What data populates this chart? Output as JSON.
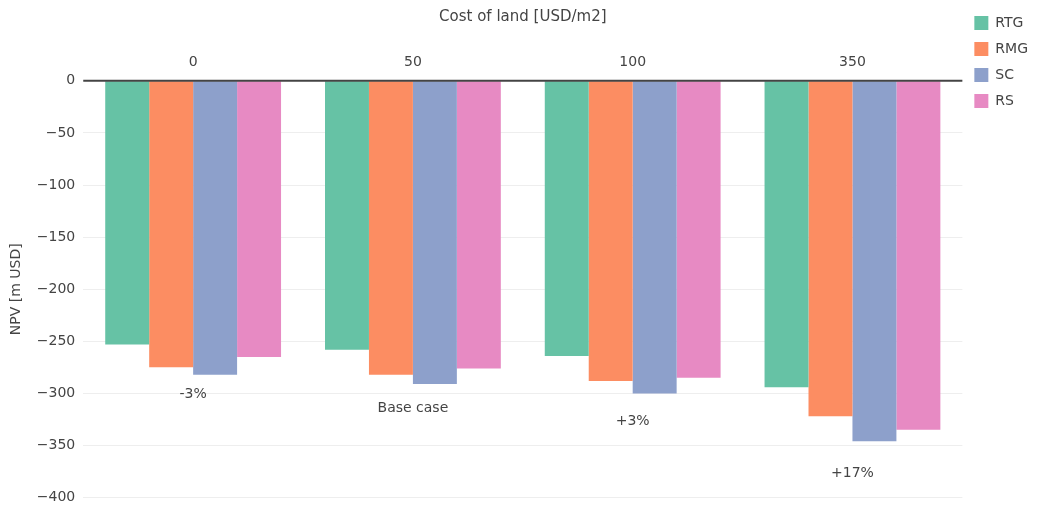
{
  "chart_data": {
    "type": "bar",
    "xlabel": "Cost of land [USD/m2]",
    "ylabel": "NPV [m USD]",
    "categories": [
      "0",
      "50",
      "100",
      "350"
    ],
    "series": [
      {
        "name": "RTG",
        "color": "#66c2a5",
        "values": [
          -253,
          -258,
          -264,
          -294
        ]
      },
      {
        "name": "RMG",
        "color": "#fc8d62",
        "values": [
          -275,
          -282,
          -288,
          -322
        ]
      },
      {
        "name": "SC",
        "color": "#8da0cb",
        "values": [
          -282,
          -291,
          -300,
          -346
        ]
      },
      {
        "name": "RS",
        "color": "#e78ac3",
        "values": [
          -265,
          -276,
          -285,
          -335
        ]
      }
    ],
    "ylim": [
      -400,
      0
    ],
    "yticks": [
      0,
      {
        "value": -50,
        "label": "−50"
      },
      {
        "value": -100,
        "label": "−100"
      },
      {
        "value": -150,
        "label": "−150"
      },
      {
        "value": -200,
        "label": "−200"
      },
      {
        "value": -250,
        "label": "−250"
      },
      {
        "value": -300,
        "label": "−300"
      },
      {
        "value": -350,
        "label": "−350"
      },
      {
        "value": -400,
        "label": "−400"
      }
    ],
    "annotations": [
      "-3%",
      "Base case",
      "+3%",
      "+17%"
    ],
    "grid": "y",
    "legend": "top right"
  }
}
